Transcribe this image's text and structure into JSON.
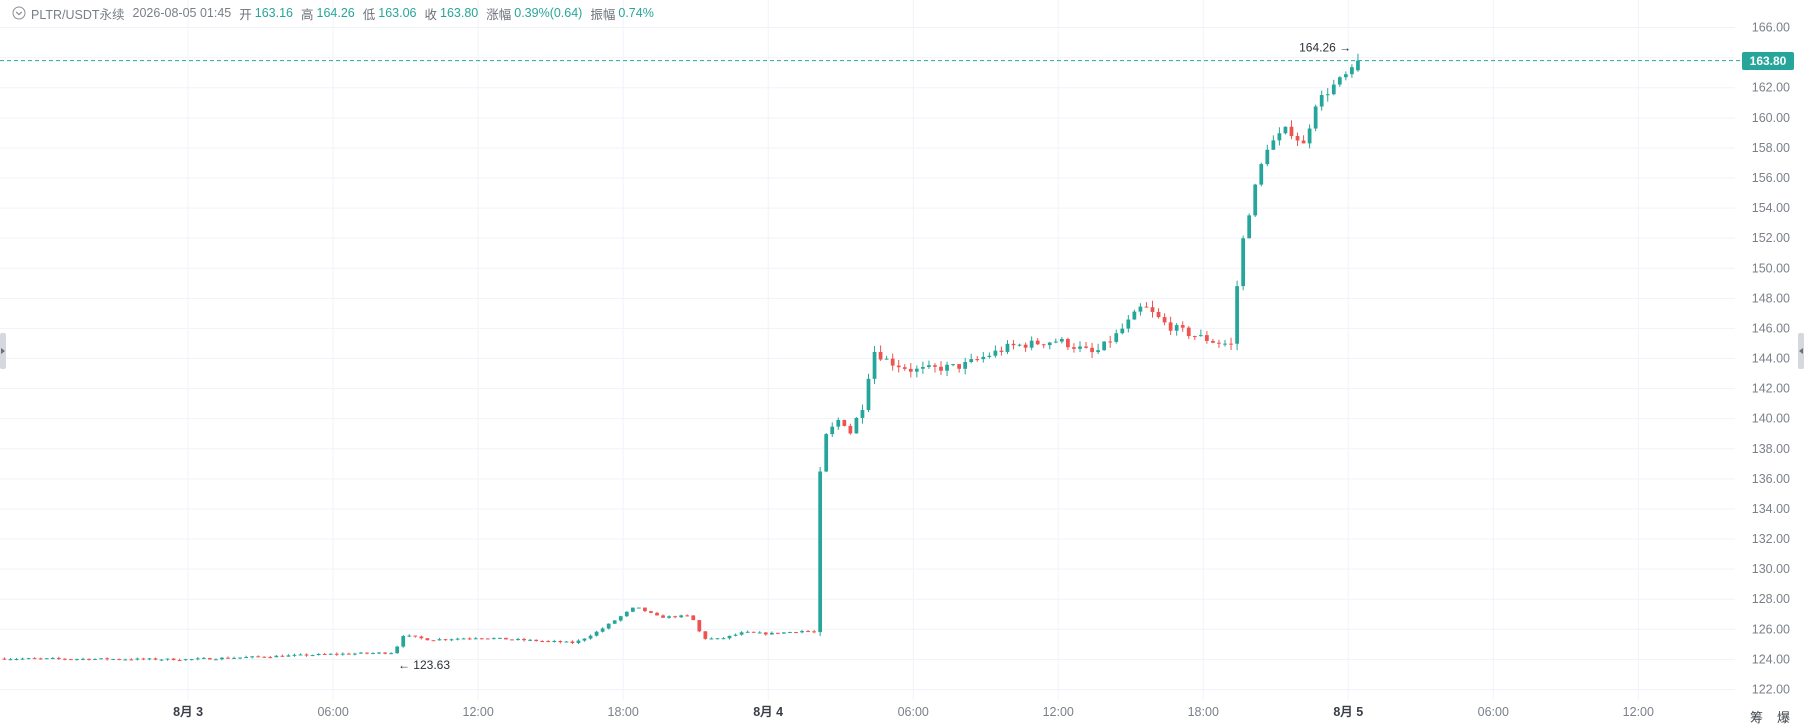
{
  "header": {
    "symbol": "PLTR/USDT永续",
    "datetime": "2026-08-05 01:45",
    "open_label": "开",
    "open": "163.16",
    "high_label": "高",
    "high": "164.26",
    "low_label": "低",
    "low": "163.06",
    "close_label": "收",
    "close": "163.80",
    "change_label": "涨幅",
    "change": "0.39%(0.64)",
    "amplitude_label": "振幅",
    "amplitude": "0.74%"
  },
  "current_price": "163.80",
  "bottom_tools": {
    "chips": "筹",
    "liquidations": "爆"
  },
  "colors": {
    "up": "#26a69a",
    "down": "#ef5350",
    "grid": "#f0f3fa",
    "axis_text": "#7b8089"
  },
  "chart_data": {
    "type": "candlestick",
    "title": "",
    "y_ticks": [
      "122.00",
      "124.00",
      "126.00",
      "128.00",
      "130.00",
      "132.00",
      "134.00",
      "136.00",
      "138.00",
      "140.00",
      "142.00",
      "144.00",
      "146.00",
      "148.00",
      "150.00",
      "152.00",
      "154.00",
      "156.00",
      "158.00",
      "160.00",
      "162.00",
      "164.00",
      "166.00"
    ],
    "ylim": [
      121.3,
      167.3
    ],
    "x_ticks": [
      {
        "label": "8月 3",
        "h": 24,
        "bold": true
      },
      {
        "label": "06:00",
        "h": 30,
        "bold": false
      },
      {
        "label": "12:00",
        "h": 36,
        "bold": false
      },
      {
        "label": "18:00",
        "h": 42,
        "bold": false
      },
      {
        "label": "8月 4",
        "h": 48,
        "bold": true
      },
      {
        "label": "06:00",
        "h": 54,
        "bold": false
      },
      {
        "label": "12:00",
        "h": 60,
        "bold": false
      },
      {
        "label": "18:00",
        "h": 66,
        "bold": false
      },
      {
        "label": "8月 5",
        "h": 72,
        "bold": true
      },
      {
        "label": "06:00",
        "h": 78,
        "bold": false
      },
      {
        "label": "12:00",
        "h": 84,
        "bold": false
      }
    ],
    "x_range_hours": [
      16.3,
      88.0
    ],
    "series_anchors": [
      [
        16.3,
        124.05
      ],
      [
        24,
        124.0
      ],
      [
        30,
        124.35
      ],
      [
        32.5,
        124.45
      ],
      [
        32.9,
        125.6
      ],
      [
        34,
        125.3
      ],
      [
        36,
        125.45
      ],
      [
        40,
        125.1
      ],
      [
        41,
        125.9
      ],
      [
        42.5,
        127.5
      ],
      [
        43.5,
        126.8
      ],
      [
        44.8,
        126.9
      ],
      [
        45.3,
        125.4
      ],
      [
        46,
        125.35
      ],
      [
        47,
        125.8
      ],
      [
        48,
        125.7
      ],
      [
        49.5,
        125.9
      ],
      [
        49.9,
        125.8
      ],
      [
        50.05,
        135.0
      ],
      [
        50.35,
        138.7
      ],
      [
        51,
        140.1
      ],
      [
        51.4,
        139.1
      ],
      [
        52,
        141.2
      ],
      [
        52.3,
        144.6
      ],
      [
        53,
        143.8
      ],
      [
        54,
        143.2
      ],
      [
        56,
        143.5
      ],
      [
        58,
        144.8
      ],
      [
        60,
        145.2
      ],
      [
        61.5,
        144.3
      ],
      [
        62.5,
        145.7
      ],
      [
        63.5,
        147.5
      ],
      [
        64.5,
        146.2
      ],
      [
        65.5,
        145.6
      ],
      [
        66.5,
        145.1
      ],
      [
        67.2,
        144.9
      ],
      [
        67.5,
        150.8
      ],
      [
        68,
        154.5
      ],
      [
        68.6,
        158.0
      ],
      [
        69.5,
        159.3
      ],
      [
        70.2,
        158.1
      ],
      [
        70.6,
        160.9
      ],
      [
        71.5,
        162.3
      ],
      [
        72.2,
        163.16
      ],
      [
        72.45,
        163.8
      ]
    ],
    "candle_interval_minutes": 15,
    "annotations": [
      {
        "text": "164.26",
        "kind": "max",
        "hour": 72.45,
        "price": 164.26
      },
      {
        "text": "123.63",
        "kind": "min",
        "hour": 32.6,
        "price": 123.63
      }
    ]
  }
}
